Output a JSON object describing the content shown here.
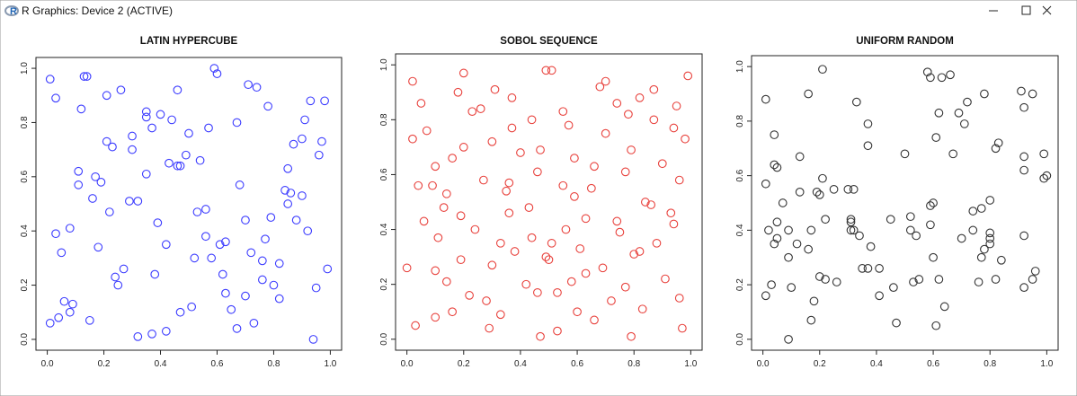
{
  "window": {
    "title": "R Graphics: Device 2 (ACTIVE)"
  },
  "chart_data": [
    {
      "type": "scatter",
      "title": "LATIN HYPERCUBE",
      "color": "#3b3bff",
      "marker": "open-circle",
      "xlim": [
        -0.04,
        1.04
      ],
      "ylim": [
        -0.04,
        1.04
      ],
      "xticks": [
        {
          "value": 0,
          "label": "0.0"
        },
        0.2,
        0.4,
        0.6,
        0.8,
        {
          "value": 1,
          "label": "1.0"
        }
      ],
      "yticks": [
        {
          "value": 0,
          "label": "0.0"
        },
        0.2,
        0.4,
        0.6,
        0.8,
        {
          "value": 1,
          "label": "1.0"
        }
      ],
      "x": [
        0.01,
        0.03,
        0.13,
        0.14,
        0.26,
        0.12,
        0.21,
        0.59,
        0.6,
        0.71,
        0.74,
        0.46,
        0.35,
        0.35,
        0.4,
        0.44,
        0.37,
        0.3,
        0.21,
        0.23,
        0.3,
        0.57,
        0.67,
        0.5,
        0.78,
        0.93,
        0.98,
        0.91,
        0.97,
        0.9,
        0.87,
        0.96,
        0.43,
        0.46,
        0.47,
        0.49,
        0.54,
        0.35,
        0.11,
        0.17,
        0.19,
        0.11,
        0.85,
        0.68,
        0.84,
        0.86,
        0.9,
        0.16,
        0.32,
        0.29,
        0.85,
        0.56,
        0.53,
        0.22,
        0.7,
        0.79,
        0.88,
        0.39,
        0.08,
        0.03,
        0.92,
        0.56,
        0.63,
        0.61,
        0.77,
        0.42,
        0.18,
        0.05,
        0.72,
        0.58,
        0.52,
        0.76,
        0.82,
        0.99,
        0.27,
        0.62,
        0.38,
        0.24,
        0.25,
        0.76,
        0.8,
        0.63,
        0.7,
        0.95,
        0.82,
        0.51,
        0.47,
        0.06,
        0.09,
        0.08,
        0.15,
        0.04,
        0.01,
        0.65,
        0.67,
        0.73,
        0.32,
        0.37,
        0.42,
        0.94
      ],
      "values": [
        0.96,
        0.89,
        0.97,
        0.97,
        0.92,
        0.85,
        0.9,
        1.0,
        0.98,
        0.94,
        0.93,
        0.92,
        0.84,
        0.82,
        0.83,
        0.81,
        0.78,
        0.75,
        0.73,
        0.71,
        0.7,
        0.78,
        0.8,
        0.76,
        0.86,
        0.88,
        0.88,
        0.81,
        0.73,
        0.74,
        0.72,
        0.68,
        0.65,
        0.64,
        0.64,
        0.68,
        0.66,
        0.61,
        0.62,
        0.6,
        0.58,
        0.57,
        0.63,
        0.57,
        0.55,
        0.54,
        0.53,
        0.52,
        0.51,
        0.51,
        0.5,
        0.48,
        0.47,
        0.47,
        0.44,
        0.45,
        0.44,
        0.43,
        0.41,
        0.39,
        0.4,
        0.38,
        0.36,
        0.35,
        0.37,
        0.35,
        0.34,
        0.32,
        0.32,
        0.3,
        0.3,
        0.29,
        0.28,
        0.26,
        0.26,
        0.24,
        0.24,
        0.23,
        0.2,
        0.22,
        0.2,
        0.17,
        0.16,
        0.19,
        0.15,
        0.12,
        0.1,
        0.14,
        0.13,
        0.1,
        0.07,
        0.08,
        0.06,
        0.11,
        0.04,
        0.06,
        0.01,
        0.02,
        0.03,
        0.0
      ]
    },
    {
      "type": "scatter",
      "title": "SOBOL SEQUENCE",
      "color": "#e8413c",
      "marker": "open-circle",
      "xlim": [
        -0.04,
        1.04
      ],
      "ylim": [
        -0.04,
        1.04
      ],
      "xticks": [
        {
          "value": 0,
          "label": "0.0"
        },
        0.2,
        0.4,
        0.6,
        0.8,
        {
          "value": 1,
          "label": "1.0"
        }
      ],
      "yticks": [
        {
          "value": 0,
          "label": "0.0"
        },
        0.2,
        0.4,
        0.6,
        0.8,
        {
          "value": 1,
          "label": "1.0"
        }
      ],
      "x": [
        0.02,
        0.05,
        0.02,
        0.07,
        0.18,
        0.2,
        0.31,
        0.23,
        0.26,
        0.37,
        0.49,
        0.51,
        0.44,
        0.37,
        0.55,
        0.57,
        0.68,
        0.7,
        0.74,
        0.78,
        0.82,
        0.87,
        0.95,
        0.99,
        0.87,
        0.94,
        0.98,
        0.7,
        0.47,
        0.4,
        0.3,
        0.2,
        0.16,
        0.1,
        0.59,
        0.66,
        0.77,
        0.79,
        0.9,
        0.96,
        0.46,
        0.36,
        0.27,
        0.04,
        0.09,
        0.14,
        0.13,
        0.35,
        0.55,
        0.59,
        0.65,
        0.84,
        0.86,
        0.43,
        0.36,
        0.93,
        0.94,
        0.63,
        0.74,
        0.75,
        0.06,
        0.19,
        0.24,
        0.11,
        0.56,
        0.44,
        0.33,
        0.38,
        0.51,
        0.61,
        0.88,
        0.8,
        0.82,
        0.0,
        0.19,
        0.3,
        0.49,
        0.5,
        0.69,
        0.63,
        0.1,
        0.14,
        0.58,
        0.42,
        0.46,
        0.53,
        0.77,
        0.91,
        0.96,
        0.22,
        0.28,
        0.72,
        0.83,
        0.16,
        0.33,
        0.6,
        0.1,
        0.66,
        0.03,
        0.29,
        0.53,
        0.47,
        0.79,
        0.97
      ],
      "values": [
        0.94,
        0.86,
        0.73,
        0.76,
        0.9,
        0.97,
        0.91,
        0.83,
        0.84,
        0.88,
        0.98,
        0.98,
        0.8,
        0.77,
        0.83,
        0.78,
        0.92,
        0.94,
        0.86,
        0.82,
        0.88,
        0.91,
        0.85,
        0.96,
        0.8,
        0.77,
        0.73,
        0.75,
        0.69,
        0.68,
        0.72,
        0.7,
        0.66,
        0.63,
        0.66,
        0.63,
        0.61,
        0.69,
        0.64,
        0.58,
        0.61,
        0.57,
        0.58,
        0.56,
        0.56,
        0.53,
        0.48,
        0.54,
        0.56,
        0.52,
        0.55,
        0.5,
        0.49,
        0.48,
        0.46,
        0.46,
        0.42,
        0.44,
        0.43,
        0.39,
        0.43,
        0.45,
        0.4,
        0.37,
        0.4,
        0.37,
        0.35,
        0.32,
        0.35,
        0.33,
        0.35,
        0.31,
        0.32,
        0.26,
        0.29,
        0.27,
        0.3,
        0.29,
        0.26,
        0.24,
        0.25,
        0.21,
        0.21,
        0.2,
        0.17,
        0.17,
        0.19,
        0.22,
        0.15,
        0.16,
        0.14,
        0.14,
        0.11,
        0.1,
        0.09,
        0.1,
        0.08,
        0.07,
        0.05,
        0.04,
        0.03,
        0.01,
        0.01,
        0.04
      ]
    },
    {
      "type": "scatter",
      "title": "UNIFORM RANDOM",
      "color": "#333333",
      "marker": "open-circle",
      "xlim": [
        -0.04,
        1.04
      ],
      "ylim": [
        -0.04,
        1.04
      ],
      "xticks": [
        {
          "value": 0,
          "label": "0.0"
        },
        0.2,
        0.4,
        0.6,
        0.8,
        {
          "value": 1,
          "label": "1.0"
        }
      ],
      "yticks": [
        {
          "value": 0,
          "label": "0.0"
        },
        0.2,
        0.4,
        0.6,
        0.8,
        {
          "value": 1,
          "label": "1.0"
        }
      ],
      "x": [
        0.01,
        0.04,
        0.21,
        0.16,
        0.33,
        0.58,
        0.59,
        0.63,
        0.66,
        0.62,
        0.69,
        0.72,
        0.78,
        0.91,
        0.95,
        0.92,
        0.37,
        0.71,
        0.61,
        0.37,
        0.83,
        0.82,
        0.13,
        0.67,
        0.5,
        0.92,
        0.99,
        0.04,
        0.05,
        0.92,
        1.0,
        0.99,
        0.01,
        0.21,
        0.13,
        0.19,
        0.2,
        0.25,
        0.3,
        0.32,
        0.07,
        0.8,
        0.59,
        0.6,
        0.74,
        0.77,
        0.52,
        0.45,
        0.22,
        0.31,
        0.31,
        0.05,
        0.02,
        0.09,
        0.31,
        0.32,
        0.34,
        0.52,
        0.54,
        0.59,
        0.7,
        0.74,
        0.8,
        0.8,
        0.92,
        0.17,
        0.12,
        0.04,
        0.05,
        0.16,
        0.38,
        0.8,
        0.78,
        0.09,
        0.6,
        0.77,
        0.84,
        0.35,
        0.37,
        0.41,
        0.96,
        0.55,
        0.53,
        0.62,
        0.2,
        0.22,
        0.26,
        0.76,
        0.82,
        0.95,
        0.03,
        0.1,
        0.46,
        0.92,
        0.01,
        0.41,
        0.18,
        0.64,
        0.17,
        0.47,
        0.61,
        0.09
      ],
      "values": [
        0.88,
        0.75,
        0.99,
        0.9,
        0.87,
        0.98,
        0.96,
        0.96,
        0.97,
        0.83,
        0.83,
        0.87,
        0.9,
        0.91,
        0.9,
        0.85,
        0.79,
        0.79,
        0.74,
        0.71,
        0.72,
        0.7,
        0.67,
        0.68,
        0.68,
        0.67,
        0.68,
        0.64,
        0.63,
        0.62,
        0.6,
        0.59,
        0.57,
        0.59,
        0.54,
        0.54,
        0.53,
        0.55,
        0.55,
        0.55,
        0.5,
        0.51,
        0.49,
        0.5,
        0.47,
        0.48,
        0.45,
        0.44,
        0.44,
        0.44,
        0.43,
        0.43,
        0.4,
        0.4,
        0.4,
        0.4,
        0.38,
        0.4,
        0.38,
        0.42,
        0.37,
        0.4,
        0.39,
        0.37,
        0.38,
        0.4,
        0.35,
        0.35,
        0.37,
        0.33,
        0.34,
        0.35,
        0.33,
        0.3,
        0.3,
        0.3,
        0.29,
        0.26,
        0.26,
        0.26,
        0.25,
        0.22,
        0.21,
        0.22,
        0.23,
        0.22,
        0.21,
        0.21,
        0.22,
        0.22,
        0.2,
        0.19,
        0.19,
        0.19,
        0.16,
        0.16,
        0.14,
        0.12,
        0.07,
        0.06,
        0.05,
        0.0
      ]
    }
  ]
}
